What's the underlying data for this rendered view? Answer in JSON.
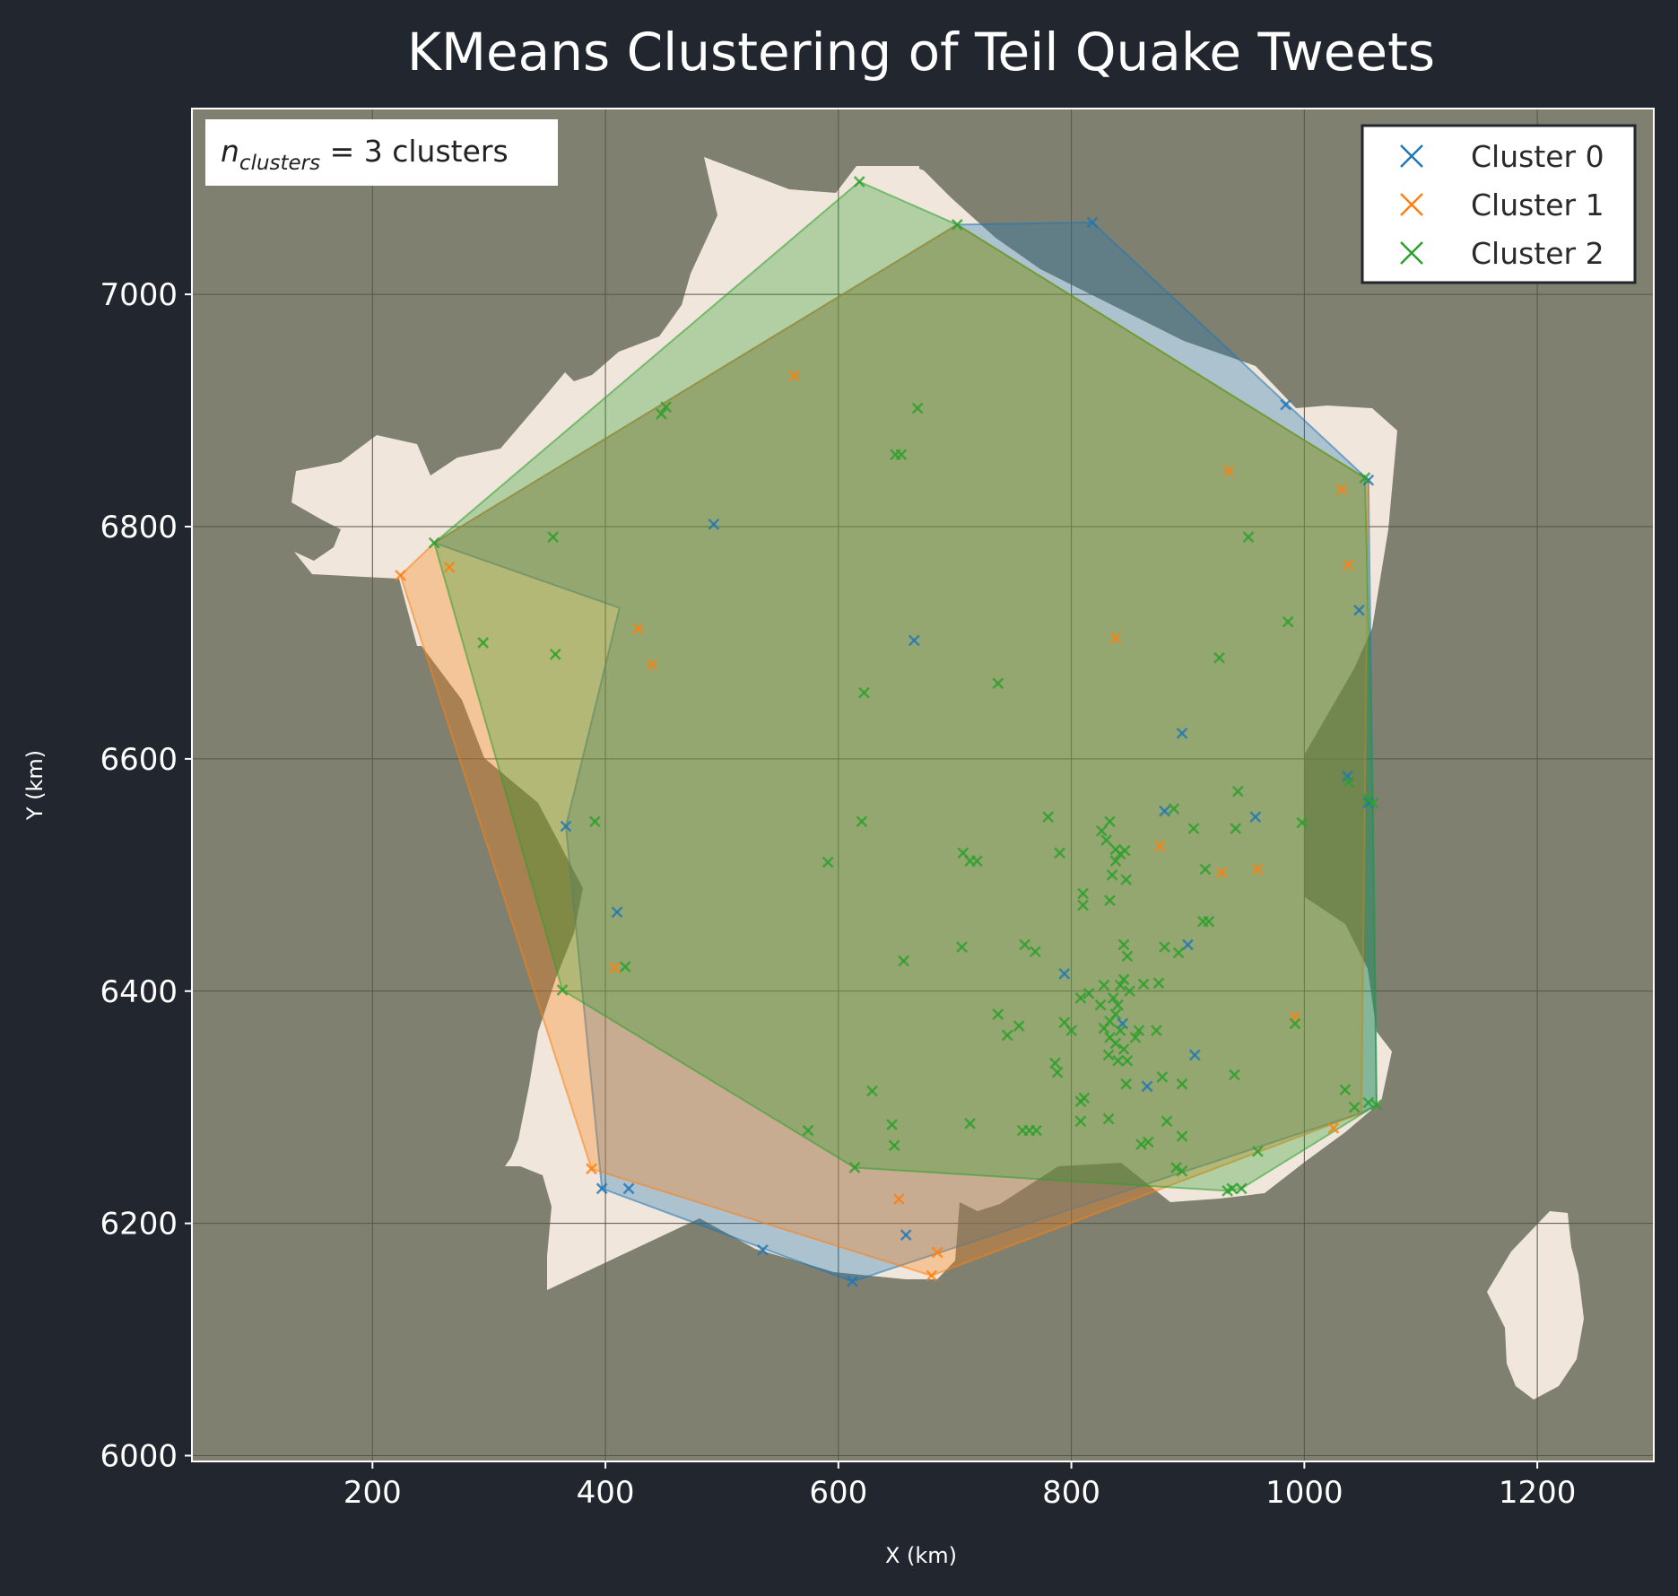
{
  "chart_data": {
    "type": "scatter",
    "title": "KMeans Clustering of Teil Quake Tweets",
    "xlabel": "X (km)",
    "ylabel": "Y (km)",
    "xlim": [
      45,
      1300
    ],
    "ylim": [
      5995,
      7160
    ],
    "xticks": [
      200,
      400,
      600,
      800,
      1000,
      1200
    ],
    "yticks": [
      6000,
      6200,
      6400,
      6600,
      6800,
      7000
    ],
    "grid": true,
    "legend_position": "top-right",
    "annotation": {
      "prefix": "n",
      "subscript": "clusters",
      "suffix": " = 3 clusters"
    },
    "background": {
      "figure": "#22262e",
      "axes": "#808070",
      "land": "#f0e6dc"
    },
    "series": [
      {
        "name": "Cluster 0",
        "color": "#1f77b4",
        "points": [
          [
            818,
            7062
          ],
          [
            984,
            6905
          ],
          [
            1055,
            6840
          ],
          [
            1047,
            6728
          ],
          [
            1037,
            6585
          ],
          [
            1055,
            6562
          ],
          [
            958,
            6550
          ],
          [
            880,
            6555
          ],
          [
            895,
            6622
          ],
          [
            794,
            6415
          ],
          [
            900,
            6440
          ],
          [
            906,
            6345
          ],
          [
            865,
            6318
          ],
          [
            844,
            6372
          ],
          [
            658,
            6190
          ],
          [
            612,
            6150
          ],
          [
            535,
            6177
          ],
          [
            420,
            6230
          ],
          [
            397,
            6230
          ],
          [
            410,
            6468
          ],
          [
            366,
            6542
          ],
          [
            493,
            6802
          ],
          [
            665,
            6702
          ]
        ],
        "hull": [
          [
            702,
            7060
          ],
          [
            818,
            7062
          ],
          [
            1055,
            6840
          ],
          [
            1062,
            6302
          ],
          [
            1049,
            6295
          ],
          [
            612,
            6150
          ],
          [
            397,
            6230
          ],
          [
            366,
            6542
          ],
          [
            412,
            6730
          ],
          [
            253,
            6786
          ]
        ]
      },
      {
        "name": "Cluster 1",
        "color": "#ff7f0e",
        "points": [
          [
            562,
            6930
          ],
          [
            935,
            6848
          ],
          [
            1032,
            6832
          ],
          [
            1038,
            6767
          ],
          [
            838,
            6704
          ],
          [
            428,
            6712
          ],
          [
            440,
            6681
          ],
          [
            266,
            6765
          ],
          [
            224,
            6758
          ],
          [
            876,
            6525
          ],
          [
            929,
            6502
          ],
          [
            960,
            6505
          ],
          [
            992,
            6378
          ],
          [
            408,
            6420
          ],
          [
            652,
            6221
          ],
          [
            685,
            6175
          ],
          [
            680,
            6155
          ],
          [
            1025,
            6282
          ],
          [
            388,
            6247
          ]
        ],
        "hull": [
          [
            224,
            6758
          ],
          [
            388,
            6247
          ],
          [
            680,
            6155
          ],
          [
            1049,
            6295
          ],
          [
            1055,
            6840
          ],
          [
            702,
            7060
          ],
          [
            253,
            6786
          ]
        ]
      },
      {
        "name": "Cluster 2",
        "color": "#2ca02c",
        "points": [
          [
            618,
            7097
          ],
          [
            702,
            7060
          ],
          [
            452,
            6903
          ],
          [
            448,
            6897
          ],
          [
            668,
            6902
          ],
          [
            649,
            6862
          ],
          [
            654,
            6862
          ],
          [
            253,
            6786
          ],
          [
            355,
            6791
          ],
          [
            952,
            6791
          ],
          [
            986,
            6718
          ],
          [
            1052,
            6842
          ],
          [
            295,
            6700
          ],
          [
            357,
            6690
          ],
          [
            622,
            6657
          ],
          [
            737,
            6665
          ],
          [
            927,
            6687
          ],
          [
            391,
            6546
          ],
          [
            620,
            6546
          ],
          [
            1055,
            6565
          ],
          [
            1059,
            6562
          ],
          [
            943,
            6572
          ],
          [
            1038,
            6580
          ],
          [
            780,
            6550
          ],
          [
            833,
            6546
          ],
          [
            826,
            6538
          ],
          [
            830,
            6530
          ],
          [
            838,
            6522
          ],
          [
            842,
            6518
          ],
          [
            846,
            6521
          ],
          [
            838,
            6512
          ],
          [
            888,
            6557
          ],
          [
            905,
            6540
          ],
          [
            941,
            6540
          ],
          [
            998,
            6545
          ],
          [
            707,
            6519
          ],
          [
            713,
            6512
          ],
          [
            719,
            6512
          ],
          [
            591,
            6511
          ],
          [
            790,
            6519
          ],
          [
            835,
            6500
          ],
          [
            847,
            6496
          ],
          [
            833,
            6478
          ],
          [
            810,
            6484
          ],
          [
            810,
            6474
          ],
          [
            915,
            6505
          ],
          [
            913,
            6460
          ],
          [
            918,
            6460
          ],
          [
            880,
            6438
          ],
          [
            892,
            6433
          ],
          [
            845,
            6440
          ],
          [
            848,
            6430
          ],
          [
            760,
            6440
          ],
          [
            769,
            6434
          ],
          [
            706,
            6438
          ],
          [
            656,
            6426
          ],
          [
            417,
            6421
          ],
          [
            363,
            6401
          ],
          [
            845,
            6410
          ],
          [
            842,
            6405
          ],
          [
            828,
            6405
          ],
          [
            875,
            6407
          ],
          [
            862,
            6406
          ],
          [
            850,
            6400
          ],
          [
            815,
            6398
          ],
          [
            808,
            6394
          ],
          [
            836,
            6394
          ],
          [
            840,
            6388
          ],
          [
            825,
            6388
          ],
          [
            838,
            6380
          ],
          [
            833,
            6374
          ],
          [
            842,
            6366
          ],
          [
            828,
            6368
          ],
          [
            833,
            6360
          ],
          [
            838,
            6355
          ],
          [
            845,
            6350
          ],
          [
            832,
            6345
          ],
          [
            840,
            6340
          ],
          [
            848,
            6340
          ],
          [
            858,
            6366
          ],
          [
            873,
            6366
          ],
          [
            855,
            6360
          ],
          [
            737,
            6380
          ],
          [
            755,
            6370
          ],
          [
            745,
            6362
          ],
          [
            794,
            6373
          ],
          [
            800,
            6366
          ],
          [
            786,
            6338
          ],
          [
            788,
            6330
          ],
          [
            847,
            6320
          ],
          [
            878,
            6326
          ],
          [
            895,
            6320
          ],
          [
            940,
            6328
          ],
          [
            811,
            6308
          ],
          [
            808,
            6305
          ],
          [
            808,
            6288
          ],
          [
            882,
            6288
          ],
          [
            832,
            6290
          ],
          [
            895,
            6275
          ],
          [
            860,
            6268
          ],
          [
            866,
            6270
          ],
          [
            764,
            6280
          ],
          [
            770,
            6280
          ],
          [
            758,
            6280
          ],
          [
            713,
            6286
          ],
          [
            646,
            6285
          ],
          [
            648,
            6267
          ],
          [
            574,
            6280
          ],
          [
            629,
            6314
          ],
          [
            614,
            6248
          ],
          [
            890,
            6248
          ],
          [
            895,
            6245
          ],
          [
            934,
            6228
          ],
          [
            938,
            6230
          ],
          [
            946,
            6230
          ],
          [
            960,
            6262
          ],
          [
            992,
            6372
          ],
          [
            1035,
            6315
          ],
          [
            1043,
            6300
          ],
          [
            1055,
            6304
          ],
          [
            1062,
            6302
          ]
        ],
        "hull": [
          [
            618,
            7097
          ],
          [
            702,
            7060
          ],
          [
            1052,
            6842
          ],
          [
            1059,
            6562
          ],
          [
            1062,
            6302
          ],
          [
            946,
            6230
          ],
          [
            934,
            6228
          ],
          [
            614,
            6248
          ],
          [
            363,
            6401
          ],
          [
            253,
            6786
          ]
        ]
      }
    ]
  }
}
